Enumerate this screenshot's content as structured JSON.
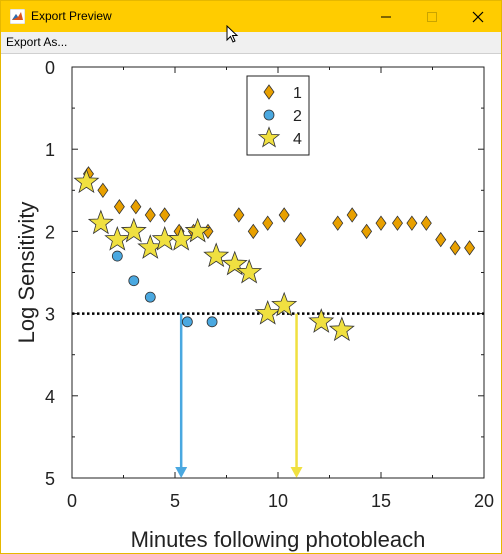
{
  "window": {
    "title": "Export Preview",
    "menu": [
      "Export As..."
    ],
    "controls": [
      "minimize-icon",
      "maximize-icon",
      "close-icon"
    ],
    "titlebar_color": "#ffcc00"
  },
  "chart_data": {
    "type": "scatter",
    "xlabel": "Minutes following photobleach",
    "ylabel": "Log Sensitivity",
    "xlim": [
      0,
      20
    ],
    "ylim": [
      0,
      5
    ],
    "y_inverted": true,
    "xticks": [
      "0",
      "5",
      "10",
      "15",
      "20"
    ],
    "yticks": [
      "0",
      "1",
      "2",
      "3",
      "4",
      "5"
    ],
    "grid": false,
    "legend_position": "top-center",
    "reference_line": {
      "y": 3,
      "style": "dotted",
      "color": "#000000"
    },
    "arrows": [
      {
        "x": 5.3,
        "from_y": 3.0,
        "to_y": 5.0,
        "color": "#4aa8e0"
      },
      {
        "x": 10.9,
        "from_y": 3.0,
        "to_y": 5.0,
        "color": "#f0e040"
      }
    ],
    "series": [
      {
        "name": "1",
        "marker": "diamond",
        "color": "#e8a000",
        "x": [
          0.8,
          1.5,
          2.3,
          3.1,
          3.8,
          4.5,
          5.2,
          5.9,
          6.6,
          8.1,
          8.8,
          9.5,
          10.3,
          11.1,
          12.9,
          13.6,
          14.3,
          15.0,
          15.8,
          16.5,
          17.2,
          17.9,
          18.6,
          19.3
        ],
        "y": [
          1.3,
          1.5,
          1.7,
          1.7,
          1.8,
          1.8,
          2.0,
          2.0,
          2.0,
          1.8,
          2.0,
          1.9,
          1.8,
          2.1,
          1.9,
          1.8,
          2.0,
          1.9,
          1.9,
          1.9,
          1.9,
          2.1,
          2.2,
          2.2
        ]
      },
      {
        "name": "2",
        "marker": "circle",
        "color": "#4aa8e0",
        "x": [
          2.2,
          3.0,
          3.8,
          5.6,
          6.8
        ],
        "y": [
          2.3,
          2.6,
          2.8,
          3.1,
          3.1
        ]
      },
      {
        "name": "4",
        "marker": "star",
        "color": "#f0e040",
        "x": [
          0.7,
          1.4,
          2.2,
          3.0,
          3.8,
          4.5,
          5.3,
          6.1,
          7.0,
          7.9,
          8.6,
          9.5,
          10.3,
          12.1,
          13.1
        ],
        "y": [
          1.4,
          1.9,
          2.1,
          2.0,
          2.2,
          2.1,
          2.1,
          2.0,
          2.3,
          2.4,
          2.5,
          3.0,
          2.9,
          3.1,
          3.2
        ]
      }
    ]
  }
}
